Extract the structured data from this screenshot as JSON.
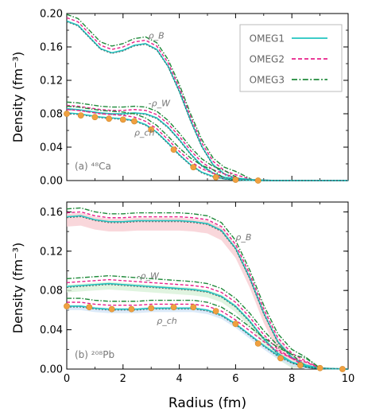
{
  "figure": {
    "xlabel": "Radius (fm)",
    "x_ticks": [
      "0",
      "2",
      "4",
      "6",
      "8",
      "10"
    ],
    "legend": [
      {
        "label": "OMEG1",
        "color": "#22c4c0",
        "dash": "solid"
      },
      {
        "label": "OMEG2",
        "color": "#e8208a",
        "dash": "dashed"
      },
      {
        "label": "OMEG3",
        "color": "#1f8a3a",
        "dash": "dashdot"
      }
    ],
    "colors": {
      "omeg1": "#22c4c0",
      "omeg2": "#e8208a",
      "omeg3": "#1f8a3a",
      "dark": "#333333",
      "exp_marker": "#f0a040",
      "band_b": "#f7c9cf",
      "band_w": "#d6f0d6",
      "band_ch": "#cfe3f7",
      "annotation": "#777777"
    }
  },
  "chart_data": [
    {
      "type": "line",
      "panel_label": "(a) ⁴⁸Ca",
      "ylabel": "Density (fm⁻³)",
      "xlim": [
        0,
        10
      ],
      "ylim": [
        0,
        0.2
      ],
      "y_ticks": [
        "0.00",
        "0.04",
        "0.08",
        "0.12",
        "0.16",
        "0.20"
      ],
      "grid": false,
      "legend_position": "top-right",
      "annotations": {
        "rho_b": "ρ_B",
        "rho_w": "-ρ_W",
        "rho_ch": "ρ_ch"
      },
      "series": [
        {
          "name": "ρ_B",
          "points": [
            [
              0,
              0.191
            ],
            [
              0.4,
              0.186
            ],
            [
              0.8,
              0.172
            ],
            [
              1.2,
              0.158
            ],
            [
              1.6,
              0.153
            ],
            [
              2.0,
              0.156
            ],
            [
              2.4,
              0.162
            ],
            [
              2.8,
              0.164
            ],
            [
              3.2,
              0.157
            ],
            [
              3.6,
              0.137
            ],
            [
              4.0,
              0.107
            ],
            [
              4.4,
              0.072
            ],
            [
              4.8,
              0.041
            ],
            [
              5.2,
              0.019
            ],
            [
              5.6,
              0.008
            ],
            [
              6.0,
              0.003
            ],
            [
              6.6,
              0.001
            ],
            [
              7.5,
              0.0
            ],
            [
              10,
              0.0
            ]
          ]
        },
        {
          "name": "-ρ_W",
          "points": [
            [
              0,
              0.086
            ],
            [
              0.4,
              0.085
            ],
            [
              0.8,
              0.083
            ],
            [
              1.2,
              0.081
            ],
            [
              1.6,
              0.08
            ],
            [
              2.0,
              0.08
            ],
            [
              2.4,
              0.081
            ],
            [
              2.8,
              0.08
            ],
            [
              3.2,
              0.075
            ],
            [
              3.6,
              0.064
            ],
            [
              4.0,
              0.049
            ],
            [
              4.4,
              0.032
            ],
            [
              4.8,
              0.018
            ],
            [
              5.2,
              0.009
            ],
            [
              5.6,
              0.004
            ],
            [
              6.2,
              0.001
            ],
            [
              7.0,
              0.0
            ],
            [
              10,
              0.0
            ]
          ]
        },
        {
          "name": "ρ_ch",
          "points": [
            [
              0,
              0.081
            ],
            [
              0.4,
              0.08
            ],
            [
              0.8,
              0.078
            ],
            [
              1.2,
              0.076
            ],
            [
              1.6,
              0.075
            ],
            [
              2.0,
              0.074
            ],
            [
              2.4,
              0.072
            ],
            [
              2.8,
              0.067
            ],
            [
              3.2,
              0.058
            ],
            [
              3.6,
              0.045
            ],
            [
              4.0,
              0.031
            ],
            [
              4.4,
              0.019
            ],
            [
              4.8,
              0.01
            ],
            [
              5.2,
              0.005
            ],
            [
              5.6,
              0.002
            ],
            [
              6.2,
              0.0005
            ],
            [
              7.0,
              0.0
            ],
            [
              10,
              0.0
            ]
          ]
        }
      ],
      "experiment": {
        "x": [
          0.0,
          0.5,
          1.0,
          1.5,
          2.0,
          2.4,
          3.0,
          3.8,
          4.5,
          5.3,
          6.0,
          6.8
        ],
        "y": [
          0.08,
          0.078,
          0.076,
          0.074,
          0.073,
          0.071,
          0.061,
          0.037,
          0.016,
          0.004,
          0.001,
          0.0
        ]
      },
      "band": false
    },
    {
      "type": "line",
      "panel_label": "(b) ²⁰⁸Pb",
      "ylabel": "Density (fm⁻³)",
      "xlim": [
        0,
        10
      ],
      "ylim": [
        0,
        0.17
      ],
      "y_ticks": [
        "0.00",
        "0.04",
        "0.08",
        "0.12",
        "0.16"
      ],
      "grid": false,
      "legend_position": "none",
      "annotations": {
        "rho_b": "ρ_B",
        "rho_w": "-ρ_W",
        "rho_ch": "ρ_ch"
      },
      "series": [
        {
          "name": "ρ_B",
          "points": [
            [
              0,
              0.155
            ],
            [
              0.5,
              0.156
            ],
            [
              1.0,
              0.152
            ],
            [
              1.5,
              0.15
            ],
            [
              2.0,
              0.15
            ],
            [
              2.5,
              0.151
            ],
            [
              3.0,
              0.151
            ],
            [
              3.5,
              0.151
            ],
            [
              4.0,
              0.151
            ],
            [
              4.5,
              0.15
            ],
            [
              5.0,
              0.148
            ],
            [
              5.5,
              0.141
            ],
            [
              6.0,
              0.123
            ],
            [
              6.5,
              0.093
            ],
            [
              7.0,
              0.057
            ],
            [
              7.5,
              0.028
            ],
            [
              8.0,
              0.012
            ],
            [
              8.5,
              0.004
            ],
            [
              9.0,
              0.001
            ],
            [
              10,
              0.0
            ]
          ]
        },
        {
          "name": "-ρ_W",
          "points": [
            [
              0,
              0.084
            ],
            [
              0.5,
              0.085
            ],
            [
              1.0,
              0.086
            ],
            [
              1.5,
              0.087
            ],
            [
              2.0,
              0.086
            ],
            [
              2.5,
              0.085
            ],
            [
              3.0,
              0.084
            ],
            [
              3.5,
              0.083
            ],
            [
              4.0,
              0.082
            ],
            [
              4.5,
              0.081
            ],
            [
              5.0,
              0.079
            ],
            [
              5.5,
              0.074
            ],
            [
              6.0,
              0.064
            ],
            [
              6.5,
              0.049
            ],
            [
              7.0,
              0.031
            ],
            [
              7.5,
              0.016
            ],
            [
              8.0,
              0.007
            ],
            [
              8.5,
              0.002
            ],
            [
              9.0,
              0.0005
            ],
            [
              10,
              0.0
            ]
          ]
        },
        {
          "name": "ρ_ch",
          "points": [
            [
              0,
              0.064
            ],
            [
              0.5,
              0.064
            ],
            [
              1.0,
              0.062
            ],
            [
              1.5,
              0.061
            ],
            [
              2.0,
              0.061
            ],
            [
              2.5,
              0.061
            ],
            [
              3.0,
              0.062
            ],
            [
              3.5,
              0.062
            ],
            [
              4.0,
              0.062
            ],
            [
              4.5,
              0.062
            ],
            [
              5.0,
              0.06
            ],
            [
              5.5,
              0.055
            ],
            [
              6.0,
              0.046
            ],
            [
              6.5,
              0.035
            ],
            [
              7.0,
              0.024
            ],
            [
              7.5,
              0.014
            ],
            [
              8.0,
              0.007
            ],
            [
              8.5,
              0.003
            ],
            [
              9.0,
              0.001
            ],
            [
              9.5,
              0.0003
            ],
            [
              10,
              0.0
            ]
          ]
        }
      ],
      "experiment": {
        "x": [
          0.0,
          0.8,
          1.6,
          2.3,
          3.0,
          3.8,
          4.5,
          5.3,
          6.0,
          6.8,
          7.6,
          8.3,
          9.0,
          9.8
        ],
        "y": [
          0.064,
          0.063,
          0.061,
          0.061,
          0.062,
          0.063,
          0.063,
          0.059,
          0.046,
          0.026,
          0.011,
          0.004,
          0.001,
          0.0
        ]
      },
      "band": true
    }
  ]
}
